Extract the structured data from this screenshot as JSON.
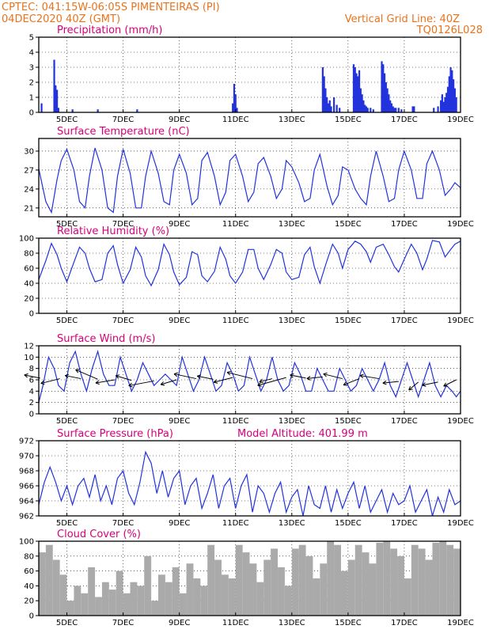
{
  "header": {
    "line1_left": "CPTEC:   041:15W-06:05S   PIMENTEIRAS (PI)",
    "line2_left": "04DEC2020 40Z (GMT)",
    "line1_right": "Vertical Grid Line: 40Z",
    "line2_right": "TQ0126L028"
  },
  "colors": {
    "header": "#e8731c",
    "title": "#d6007a",
    "line": "#2233dd",
    "cloud": "#aaaaaa",
    "wind_arrow": "#000000"
  },
  "x_tick_labels": [
    "5DEC",
    "7DEC",
    "9DEC",
    "11DEC",
    "13DEC",
    "15DEC",
    "17DEC",
    "19DEC"
  ],
  "chart_data": [
    {
      "type": "bar",
      "title": "Precipitation (mm/h)",
      "x_range_days": [
        0,
        15
      ],
      "ylim": [
        0,
        5
      ],
      "yticks": [
        "0",
        "1",
        "2",
        "3",
        "4",
        "5"
      ],
      "x": [
        0.1,
        0.55,
        0.6,
        0.65,
        0.7,
        1.2,
        2.1,
        3.5,
        6.9,
        6.95,
        7.0,
        7.05,
        10.1,
        10.15,
        10.2,
        10.25,
        10.3,
        10.35,
        10.4,
        10.5,
        10.6,
        10.7,
        11.2,
        11.25,
        11.3,
        11.35,
        11.4,
        11.45,
        11.5,
        11.55,
        11.6,
        11.65,
        11.7,
        11.8,
        11.9,
        12.2,
        12.25,
        12.3,
        12.35,
        12.4,
        12.45,
        12.5,
        12.55,
        12.6,
        12.65,
        12.7,
        12.8,
        12.9,
        13.3,
        13.35,
        14.05,
        14.2,
        14.3,
        14.35,
        14.4,
        14.45,
        14.5,
        14.55,
        14.6,
        14.65,
        14.7,
        14.75,
        14.8,
        14.85
      ],
      "values": [
        0.6,
        3.5,
        1.8,
        1.5,
        0.3,
        0.2,
        0.2,
        0.2,
        0.6,
        1.9,
        1.2,
        0.3,
        3.0,
        2.4,
        1.6,
        1.0,
        0.6,
        0.8,
        0.4,
        1.0,
        0.5,
        0.3,
        3.2,
        3.0,
        2.6,
        2.4,
        2.8,
        1.6,
        1.2,
        0.8,
        0.5,
        0.4,
        0.3,
        0.3,
        0.2,
        3.4,
        3.2,
        2.6,
        2.0,
        1.6,
        1.2,
        0.8,
        0.6,
        0.4,
        0.3,
        0.3,
        0.3,
        0.2,
        0.4,
        0.4,
        0.3,
        0.4,
        0.8,
        1.2,
        0.7,
        1.0,
        1.3,
        1.7,
        2.4,
        3.0,
        2.8,
        2.2,
        1.6,
        1.0
      ]
    },
    {
      "type": "line",
      "title": "Surface Temperature (nC)",
      "x_range_days": [
        0,
        15
      ],
      "ylim": [
        19.6,
        32
      ],
      "yticks": [
        "21",
        "24",
        "27",
        "30"
      ],
      "ytick_values": [
        21,
        24,
        27,
        30
      ],
      "x": [
        0,
        0.25,
        0.45,
        0.65,
        0.8,
        1.0,
        1.25,
        1.45,
        1.65,
        1.8,
        2.0,
        2.25,
        2.45,
        2.65,
        2.8,
        3.0,
        3.25,
        3.45,
        3.65,
        3.8,
        4.0,
        4.25,
        4.45,
        4.65,
        4.8,
        5.0,
        5.25,
        5.45,
        5.65,
        5.8,
        6.0,
        6.25,
        6.45,
        6.65,
        6.8,
        7.0,
        7.25,
        7.45,
        7.65,
        7.8,
        8.0,
        8.25,
        8.45,
        8.65,
        8.8,
        9.0,
        9.25,
        9.45,
        9.65,
        9.8,
        10.0,
        10.25,
        10.45,
        10.65,
        10.8,
        11.0,
        11.25,
        11.45,
        11.65,
        11.8,
        12.0,
        12.25,
        12.45,
        12.65,
        12.8,
        13.0,
        13.25,
        13.45,
        13.65,
        13.8,
        14.0,
        14.25,
        14.45,
        14.65,
        14.8,
        15.0
      ],
      "values": [
        27.2,
        22.0,
        20.3,
        25.5,
        28.5,
        30.3,
        27.0,
        22.0,
        21.0,
        26.0,
        30.5,
        27.0,
        21.0,
        20.3,
        26.0,
        30.3,
        26.5,
        21.0,
        21.0,
        26.0,
        30.0,
        26.5,
        22.0,
        21.5,
        27.0,
        29.5,
        26.5,
        21.5,
        22.5,
        28.5,
        29.8,
        26.0,
        21.5,
        23.5,
        28.5,
        29.5,
        26.0,
        22.0,
        23.5,
        28.0,
        29.0,
        26.0,
        22.5,
        24.0,
        28.5,
        27.5,
        25.0,
        22.0,
        22.5,
        27.0,
        29.5,
        24.5,
        21.5,
        23.0,
        27.5,
        27.0,
        24.0,
        22.5,
        21.5,
        26.0,
        30.0,
        26.0,
        22.0,
        22.5,
        27.0,
        30.0,
        27.0,
        22.5,
        22.5,
        28.0,
        30.0,
        27.0,
        23.0,
        24.0,
        25.0,
        24.2
      ]
    },
    {
      "type": "line",
      "title": "Relative Humidity (%)",
      "x_range_days": [
        0,
        15
      ],
      "ylim": [
        0,
        100
      ],
      "yticks": [
        "0",
        "20",
        "40",
        "60",
        "80",
        "100"
      ],
      "ytick_values": [
        0,
        20,
        40,
        60,
        80,
        100
      ],
      "x": [
        0,
        0.25,
        0.45,
        0.65,
        0.8,
        1.0,
        1.25,
        1.45,
        1.65,
        1.8,
        2.0,
        2.25,
        2.45,
        2.65,
        2.8,
        3.0,
        3.25,
        3.45,
        3.65,
        3.8,
        4.0,
        4.25,
        4.45,
        4.65,
        4.8,
        5.0,
        5.25,
        5.45,
        5.65,
        5.8,
        6.0,
        6.25,
        6.45,
        6.65,
        6.8,
        7.0,
        7.25,
        7.45,
        7.65,
        7.8,
        8.0,
        8.25,
        8.45,
        8.65,
        8.8,
        9.0,
        9.25,
        9.45,
        9.65,
        9.8,
        10.0,
        10.25,
        10.45,
        10.65,
        10.8,
        11.0,
        11.25,
        11.45,
        11.65,
        11.8,
        12.0,
        12.25,
        12.45,
        12.65,
        12.8,
        13.0,
        13.25,
        13.45,
        13.65,
        13.8,
        14.0,
        14.25,
        14.45,
        14.65,
        14.8,
        15.0
      ],
      "values": [
        45,
        70,
        93,
        78,
        60,
        42,
        68,
        88,
        80,
        60,
        42,
        45,
        80,
        90,
        65,
        40,
        58,
        88,
        75,
        50,
        37,
        58,
        92,
        78,
        55,
        38,
        48,
        82,
        78,
        50,
        42,
        56,
        88,
        72,
        50,
        40,
        55,
        85,
        85,
        60,
        45,
        65,
        85,
        80,
        55,
        45,
        48,
        78,
        88,
        62,
        40,
        70,
        92,
        80,
        60,
        85,
        96,
        92,
        82,
        68,
        88,
        92,
        78,
        62,
        55,
        72,
        92,
        80,
        58,
        72,
        97,
        95,
        75,
        85,
        92,
        96
      ]
    },
    {
      "type": "line",
      "title": "Surface Wind (m/s)",
      "x_range_days": [
        0,
        15
      ],
      "ylim": [
        0,
        12
      ],
      "yticks": [
        "0",
        "2",
        "4",
        "6",
        "8",
        "10",
        "12"
      ],
      "ytick_values": [
        0,
        2,
        4,
        6,
        8,
        10,
        12
      ],
      "x": [
        0,
        0.15,
        0.35,
        0.55,
        0.7,
        0.9,
        1.1,
        1.3,
        1.5,
        1.7,
        1.9,
        2.1,
        2.3,
        2.5,
        2.7,
        2.9,
        3.1,
        3.3,
        3.5,
        3.7,
        3.9,
        4.1,
        4.3,
        4.5,
        4.7,
        4.9,
        5.1,
        5.3,
        5.5,
        5.7,
        5.9,
        6.1,
        6.3,
        6.5,
        6.7,
        6.9,
        7.1,
        7.3,
        7.5,
        7.7,
        7.9,
        8.1,
        8.3,
        8.5,
        8.7,
        8.9,
        9.1,
        9.3,
        9.5,
        9.7,
        9.9,
        10.1,
        10.3,
        10.5,
        10.7,
        10.9,
        11.1,
        11.3,
        11.5,
        11.7,
        11.9,
        12.1,
        12.3,
        12.5,
        12.7,
        12.9,
        13.1,
        13.3,
        13.5,
        13.7,
        13.9,
        14.1,
        14.3,
        14.5,
        14.7,
        14.85,
        15.0
      ],
      "values": [
        2,
        5,
        10,
        8,
        5,
        4,
        9,
        11,
        7,
        4,
        8,
        11,
        7,
        5,
        5,
        10,
        7,
        4,
        6,
        9,
        7,
        5,
        6,
        7,
        6,
        5,
        10,
        7,
        4,
        6,
        10,
        7,
        4,
        5,
        9,
        7,
        4,
        5,
        10,
        7,
        4,
        6,
        10,
        6,
        4,
        5,
        9,
        7,
        4,
        4,
        8,
        6,
        4,
        4,
        8,
        6,
        4,
        5,
        8,
        6,
        4,
        6,
        9,
        5,
        3,
        6,
        9,
        6,
        3,
        6,
        9,
        5,
        3,
        5,
        4,
        3,
        4
      ],
      "arrows_x": [
        0.05,
        0.75,
        1.5,
        2.1,
        2.7,
        3.3,
        4.1,
        4.9,
        5.6,
        6.2,
        6.9,
        7.6,
        8.3,
        8.8,
        9.5,
        10.1,
        10.8,
        11.4,
        12.1,
        12.8,
        13.5,
        14.2,
        14.85
      ],
      "arrows_y": [
        6.3,
        6.2,
        6.2,
        6.1,
        6.0,
        5.9,
        5.8,
        6.0,
        6.2,
        6.1,
        6.4,
        6.2,
        6.2,
        6.4,
        6.3,
        6.5,
        6.2,
        6.2,
        6.2,
        5.7,
        5.6,
        5.6,
        6.0
      ],
      "arrows_u": [
        -0.5,
        -0.6,
        -0.5,
        -0.7,
        -0.6,
        -0.5,
        -0.8,
        -0.5,
        -0.7,
        -0.5,
        -0.6,
        -0.8,
        -0.4,
        -0.9,
        -0.5,
        -0.5,
        -0.6,
        -0.5,
        -0.6,
        -0.5,
        -0.3,
        -0.5,
        -0.4
      ],
      "arrows_v": [
        0.2,
        -0.3,
        0.2,
        0.6,
        -0.2,
        0.3,
        -0.3,
        -0.3,
        0.3,
        0.2,
        -0.3,
        0.4,
        -0.2,
        -0.5,
        0.2,
        -0.1,
        0.3,
        -0.4,
        0.2,
        -0.1,
        -0.5,
        -0.2,
        -0.4
      ]
    },
    {
      "type": "line",
      "title": "Surface Pressure (hPa)",
      "subtitle": "Model Altitude: 401.99 m",
      "x_range_days": [
        0,
        15
      ],
      "ylim": [
        962,
        972
      ],
      "yticks": [
        "962",
        "964",
        "966",
        "968",
        "970",
        "972"
      ],
      "ytick_values": [
        962,
        964,
        966,
        968,
        970,
        972
      ],
      "x": [
        0,
        0.2,
        0.4,
        0.6,
        0.8,
        1.0,
        1.2,
        1.4,
        1.6,
        1.8,
        2.0,
        2.2,
        2.4,
        2.6,
        2.8,
        3.0,
        3.2,
        3.4,
        3.6,
        3.8,
        4.0,
        4.2,
        4.4,
        4.6,
        4.8,
        5.0,
        5.2,
        5.4,
        5.6,
        5.8,
        6.0,
        6.2,
        6.4,
        6.6,
        6.8,
        7.0,
        7.2,
        7.4,
        7.6,
        7.8,
        8.0,
        8.2,
        8.4,
        8.6,
        8.8,
        9.0,
        9.2,
        9.4,
        9.6,
        9.8,
        10.0,
        10.2,
        10.4,
        10.6,
        10.8,
        11.0,
        11.2,
        11.4,
        11.6,
        11.8,
        12.0,
        12.2,
        12.4,
        12.6,
        12.8,
        13.0,
        13.2,
        13.4,
        13.6,
        13.8,
        14.0,
        14.2,
        14.4,
        14.6,
        14.8,
        15.0
      ],
      "values": [
        963.5,
        966.5,
        968.5,
        966.5,
        964.0,
        966.0,
        963.5,
        966.0,
        967.0,
        964.5,
        967.5,
        964.0,
        966.0,
        963.5,
        967.0,
        968.0,
        965.0,
        963.5,
        966.5,
        970.5,
        969.0,
        965.0,
        968.0,
        964.5,
        967.0,
        968.0,
        963.5,
        966.0,
        967.0,
        963.0,
        965.0,
        967.5,
        963.0,
        966.0,
        967.0,
        963.0,
        966.0,
        967.5,
        962.5,
        966.0,
        965.0,
        962.5,
        965.0,
        966.5,
        962.5,
        964.5,
        965.5,
        962.0,
        966.0,
        963.5,
        963.0,
        966.0,
        962.5,
        965.5,
        963.0,
        965.0,
        966.5,
        963.0,
        966.0,
        962.5,
        964.0,
        965.5,
        962.5,
        965.0,
        963.5,
        964.0,
        966.0,
        962.5,
        964.0,
        965.5,
        962.0,
        964.5,
        962.5,
        965.5,
        963.5,
        964.0
      ]
    },
    {
      "type": "bar",
      "title": "Cloud Cover (%)",
      "x_range_days": [
        0,
        15
      ],
      "ylim": [
        0,
        100
      ],
      "yticks": [
        "0",
        "20",
        "40",
        "60",
        "80",
        "100"
      ],
      "ytick_values": [
        0,
        20,
        40,
        60,
        80,
        100
      ],
      "x": [
        0,
        0.25,
        0.5,
        0.75,
        1.0,
        1.25,
        1.5,
        1.75,
        2.0,
        2.25,
        2.5,
        2.75,
        3.0,
        3.25,
        3.5,
        3.75,
        4.0,
        4.25,
        4.5,
        4.75,
        5.0,
        5.25,
        5.5,
        5.75,
        6.0,
        6.25,
        6.5,
        6.75,
        7.0,
        7.25,
        7.5,
        7.75,
        8.0,
        8.25,
        8.5,
        8.75,
        9.0,
        9.25,
        9.5,
        9.75,
        10.0,
        10.25,
        10.5,
        10.75,
        11.0,
        11.25,
        11.5,
        11.75,
        12.0,
        12.25,
        12.5,
        12.75,
        13.0,
        13.25,
        13.5,
        13.75,
        14.0,
        14.25,
        14.5,
        14.75
      ],
      "values": [
        85,
        95,
        75,
        55,
        20,
        40,
        30,
        65,
        25,
        45,
        35,
        60,
        30,
        45,
        40,
        80,
        20,
        55,
        45,
        65,
        30,
        70,
        50,
        40,
        95,
        75,
        55,
        50,
        95,
        85,
        70,
        45,
        75,
        90,
        65,
        40,
        90,
        95,
        80,
        50,
        70,
        100,
        95,
        60,
        75,
        95,
        85,
        70,
        98,
        100,
        90,
        80,
        50,
        95,
        90,
        75,
        98,
        100,
        95,
        90
      ]
    }
  ]
}
